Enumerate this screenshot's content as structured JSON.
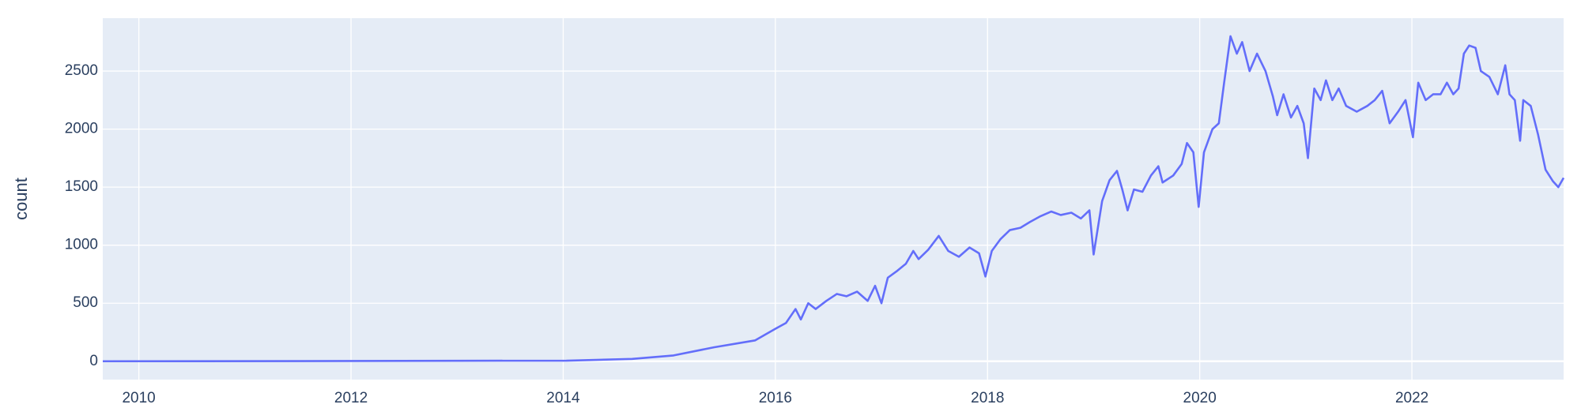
{
  "chart_data": {
    "type": "line",
    "y_title": "count",
    "x": [
      2009.66,
      2012.0,
      2013.0,
      2014.03,
      2014.65,
      2015.04,
      2015.42,
      2015.81,
      2016.0,
      2016.1,
      2016.19,
      2016.24,
      2016.31,
      2016.38,
      2016.48,
      2016.58,
      2016.67,
      2016.77,
      2016.87,
      2016.94,
      2017.0,
      2017.06,
      2017.15,
      2017.23,
      2017.3,
      2017.35,
      2017.44,
      2017.54,
      2017.63,
      2017.73,
      2017.83,
      2017.92,
      2017.98,
      2018.04,
      2018.12,
      2018.21,
      2018.31,
      2018.4,
      2018.5,
      2018.6,
      2018.69,
      2018.79,
      2018.88,
      2018.96,
      2019.0,
      2019.08,
      2019.15,
      2019.22,
      2019.27,
      2019.32,
      2019.38,
      2019.46,
      2019.54,
      2019.61,
      2019.65,
      2019.75,
      2019.83,
      2019.88,
      2019.94,
      2019.99,
      2020.04,
      2020.12,
      2020.18,
      2020.23,
      2020.29,
      2020.35,
      2020.4,
      2020.47,
      2020.54,
      2020.62,
      2020.69,
      2020.73,
      2020.79,
      2020.86,
      2020.92,
      2020.98,
      2021.02,
      2021.08,
      2021.14,
      2021.19,
      2021.25,
      2021.31,
      2021.38,
      2021.48,
      2021.58,
      2021.65,
      2021.72,
      2021.79,
      2021.87,
      2021.94,
      2022.01,
      2022.06,
      2022.13,
      2022.2,
      2022.27,
      2022.33,
      2022.39,
      2022.44,
      2022.49,
      2022.54,
      2022.6,
      2022.65,
      2022.73,
      2022.81,
      2022.88,
      2022.92,
      2022.97,
      2023.02,
      2023.05,
      2023.12,
      2023.19,
      2023.26,
      2023.33,
      2023.38,
      2023.43
    ],
    "series": [
      {
        "name": "count",
        "color": "#636efa",
        "values": [
          0,
          2,
          4,
          5,
          20,
          50,
          120,
          180,
          280,
          330,
          450,
          360,
          500,
          450,
          520,
          580,
          560,
          600,
          520,
          650,
          500,
          720,
          780,
          840,
          950,
          880,
          960,
          1080,
          950,
          900,
          980,
          930,
          730,
          950,
          1050,
          1130,
          1150,
          1200,
          1250,
          1290,
          1260,
          1280,
          1230,
          1300,
          920,
          1380,
          1560,
          1640,
          1480,
          1300,
          1480,
          1460,
          1600,
          1680,
          1540,
          1600,
          1700,
          1880,
          1800,
          1330,
          1800,
          2000,
          2050,
          2400,
          2800,
          2650,
          2750,
          2500,
          2650,
          2500,
          2280,
          2120,
          2300,
          2100,
          2200,
          2050,
          1750,
          2350,
          2250,
          2420,
          2250,
          2350,
          2200,
          2150,
          2200,
          2250,
          2330,
          2050,
          2150,
          2250,
          1930,
          2400,
          2250,
          2300,
          2300,
          2400,
          2300,
          2350,
          2650,
          2720,
          2700,
          2500,
          2450,
          2300,
          2550,
          2300,
          2250,
          1900,
          2250,
          2200,
          1950,
          1650,
          1550,
          1500,
          1580
        ]
      }
    ],
    "xlim": [
      2009.66,
      2023.43
    ],
    "ylim": [
      -158,
      2956
    ],
    "xticks": [
      2010,
      2012,
      2014,
      2016,
      2018,
      2020,
      2022
    ],
    "yticks": [
      0,
      500,
      1000,
      1500,
      2000,
      2500
    ],
    "grid": true
  }
}
